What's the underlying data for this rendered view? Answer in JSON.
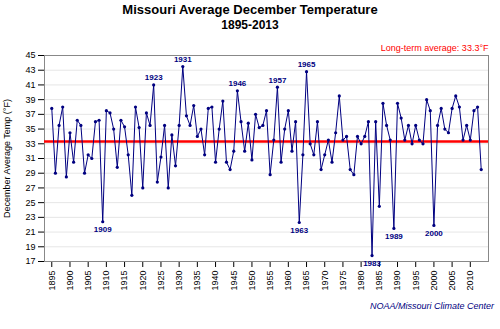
{
  "chart_data": {
    "type": "line",
    "title": "Missouri Average December Temperature",
    "subtitle": "1895-2013",
    "ylabel": "December Average Temp (°F)",
    "caption": "NOAA/Missouri Climate Center",
    "color": "#000080",
    "marker": "circle",
    "grid": true,
    "xlim": [
      1893,
      2015
    ],
    "xticks": [
      1895,
      1900,
      1905,
      1910,
      1915,
      1920,
      1925,
      1930,
      1935,
      1940,
      1945,
      1950,
      1955,
      1960,
      1965,
      1970,
      1975,
      1980,
      1985,
      1990,
      1995,
      2000,
      2005,
      2010
    ],
    "ylim": [
      17.0,
      45.0
    ],
    "yticks": [
      17.0,
      19.0,
      21.0,
      23.0,
      25.0,
      27.0,
      29.0,
      31.0,
      33.0,
      35.0,
      37.0,
      39.0,
      41.0,
      43.0,
      45.0
    ],
    "reference_line": {
      "value": 33.3,
      "label": "Long-term average: 33.3°F",
      "color": "#FF0000"
    },
    "annotations": [
      {
        "text": "1909",
        "x": 1909,
        "y": 22.4
      },
      {
        "text": "1923",
        "x": 1923,
        "y": 41.0
      },
      {
        "text": "1931",
        "x": 1931,
        "y": 43.5
      },
      {
        "text": "1946",
        "x": 1946,
        "y": 40.2
      },
      {
        "text": "1957",
        "x": 1957,
        "y": 40.7
      },
      {
        "text": "1963",
        "x": 1963,
        "y": 22.3
      },
      {
        "text": "1965",
        "x": 1965,
        "y": 42.8
      },
      {
        "text": "1983",
        "x": 1983,
        "y": 17.8
      },
      {
        "text": "1989",
        "x": 1989,
        "y": 21.5
      },
      {
        "text": "2000",
        "x": 2000,
        "y": 21.9
      }
    ],
    "x": [
      1895,
      1896,
      1897,
      1898,
      1899,
      1900,
      1901,
      1902,
      1903,
      1904,
      1905,
      1906,
      1907,
      1908,
      1909,
      1910,
      1911,
      1912,
      1913,
      1914,
      1915,
      1916,
      1917,
      1918,
      1919,
      1920,
      1921,
      1922,
      1923,
      1924,
      1925,
      1926,
      1927,
      1928,
      1929,
      1930,
      1931,
      1932,
      1933,
      1934,
      1935,
      1936,
      1937,
      1938,
      1939,
      1940,
      1941,
      1942,
      1943,
      1944,
      1945,
      1946,
      1947,
      1948,
      1949,
      1950,
      1951,
      1952,
      1953,
      1954,
      1955,
      1956,
      1957,
      1958,
      1959,
      1960,
      1961,
      1962,
      1963,
      1964,
      1965,
      1966,
      1967,
      1968,
      1969,
      1970,
      1971,
      1972,
      1973,
      1974,
      1975,
      1976,
      1977,
      1978,
      1979,
      1980,
      1981,
      1982,
      1983,
      1984,
      1985,
      1986,
      1987,
      1988,
      1989,
      1990,
      1991,
      1992,
      1993,
      1994,
      1995,
      1996,
      1997,
      1998,
      1999,
      2000,
      2001,
      2002,
      2003,
      2004,
      2005,
      2006,
      2007,
      2008,
      2009,
      2010,
      2011,
      2012,
      2013
    ],
    "values": [
      37.8,
      29.0,
      35.5,
      38.0,
      28.5,
      34.5,
      30.5,
      36.2,
      35.5,
      29.0,
      31.5,
      31.0,
      36.0,
      36.2,
      22.4,
      37.5,
      37.2,
      35.0,
      29.8,
      36.2,
      35.3,
      31.5,
      26.0,
      38.0,
      35.2,
      27.0,
      37.2,
      35.5,
      41.0,
      27.8,
      31.2,
      35.5,
      27.0,
      34.2,
      30.0,
      35.5,
      43.5,
      36.8,
      35.5,
      38.2,
      34.0,
      35.0,
      31.5,
      37.8,
      38.0,
      30.5,
      35.0,
      38.8,
      30.5,
      29.5,
      32.0,
      40.2,
      36.0,
      32.0,
      35.8,
      30.8,
      37.0,
      35.2,
      35.5,
      37.5,
      28.8,
      33.5,
      40.7,
      30.5,
      35.0,
      37.5,
      32.0,
      36.0,
      22.3,
      31.5,
      42.8,
      33.0,
      31.5,
      36.0,
      29.5,
      31.5,
      33.5,
      30.5,
      34.5,
      39.5,
      33.5,
      34.0,
      29.5,
      28.8,
      34.0,
      33.0,
      34.0,
      36.0,
      17.8,
      36.0,
      24.5,
      38.5,
      35.5,
      33.5,
      21.5,
      38.5,
      36.5,
      33.5,
      35.5,
      33.0,
      35.5,
      33.5,
      33.0,
      39.0,
      37.5,
      21.9,
      35.5,
      37.8,
      35.0,
      34.5,
      37.8,
      39.5,
      38.0,
      33.5,
      35.5,
      33.5,
      37.5,
      38.0,
      29.5
    ]
  }
}
